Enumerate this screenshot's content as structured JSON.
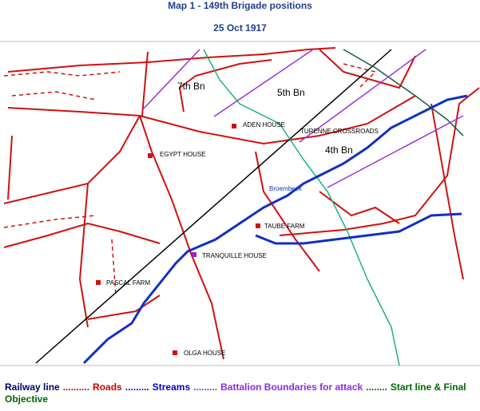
{
  "header": {
    "title": "Map 1 - 149th Brigade positions",
    "date": "25 Oct 1917"
  },
  "labels": {
    "bn7": "7th Bn",
    "bn5": "5th Bn",
    "bn4": "4th Bn",
    "aden": "ADEN HOUSE",
    "turenne": "TURENNE CROSSROADS",
    "egypt": "EGYPT HOUSE",
    "broembeek": "Broembeek",
    "taube": "TAUBE FARM",
    "tranquille": "TRANQUILLE HOUSE",
    "pascal": "PASCAL FARM",
    "olga": "OLGA HOUSE"
  },
  "legend": [
    {
      "text": "Railway line",
      "color": "#000066"
    },
    {
      "text": "..........",
      "color": "#cc0000"
    },
    {
      "text": "Roads",
      "color": "#cc0000"
    },
    {
      "text": ".........",
      "color": "#0000cc"
    },
    {
      "text": "Streams",
      "color": "#0000cc"
    },
    {
      "text": ".........",
      "color": "#8a2be2"
    },
    {
      "text": "Battalion Boundaries for attack",
      "color": "#8a2be2"
    },
    {
      "text": "........",
      "color": "#006600"
    },
    {
      "text": "Start line & Final Objective",
      "color": "#006600"
    }
  ]
}
